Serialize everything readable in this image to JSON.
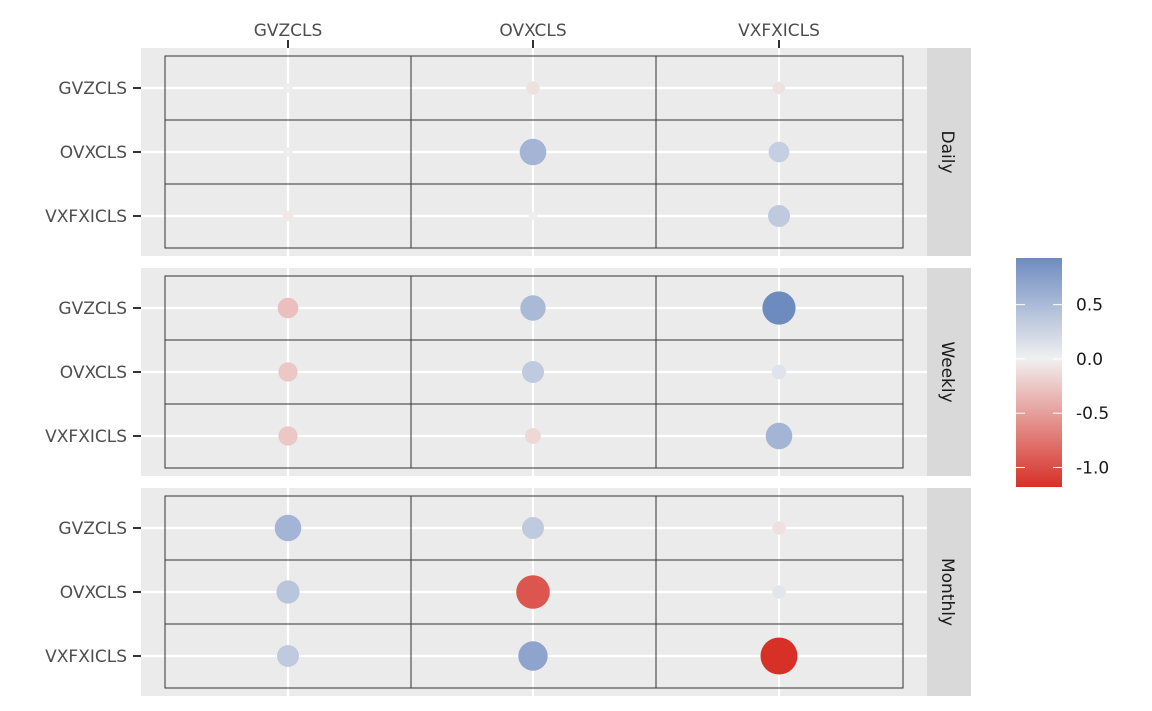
{
  "chart_data": {
    "type": "scatter",
    "subtype": "faceted dot matrix (size and color by value)",
    "x_categories": [
      "GVZCLS",
      "OVXCLS",
      "VXFXICLS"
    ],
    "y_categories": [
      "GVZCLS",
      "OVXCLS",
      "VXFXICLS"
    ],
    "facets": [
      {
        "name": "Daily",
        "values": [
          [
            0.03,
            -0.1,
            -0.08
          ],
          [
            0.03,
            0.55,
            0.3
          ],
          [
            -0.05,
            -0.02,
            0.35
          ]
        ]
      },
      {
        "name": "Weekly",
        "values": [
          [
            -0.3,
            0.5,
            0.93
          ],
          [
            -0.25,
            0.35,
            0.12
          ],
          [
            -0.25,
            -0.15,
            0.55
          ]
        ]
      },
      {
        "name": "Monthly",
        "values": [
          [
            0.55,
            0.35,
            -0.1
          ],
          [
            0.4,
            -0.95,
            0.1
          ],
          [
            0.35,
            0.7,
            -1.18
          ]
        ]
      }
    ],
    "legend": {
      "position": "right",
      "ticks": [
        "0.5",
        "0.0",
        "-0.5",
        "-1.0"
      ],
      "tick_values": [
        0.5,
        0.0,
        -0.5,
        -1.0
      ],
      "range": [
        -1.18,
        0.93
      ],
      "colors": {
        "low": "#d73027",
        "mid": "#f0f0f0",
        "high": "#6e8bc0"
      }
    },
    "grid": true,
    "x_axis_position": "top"
  }
}
